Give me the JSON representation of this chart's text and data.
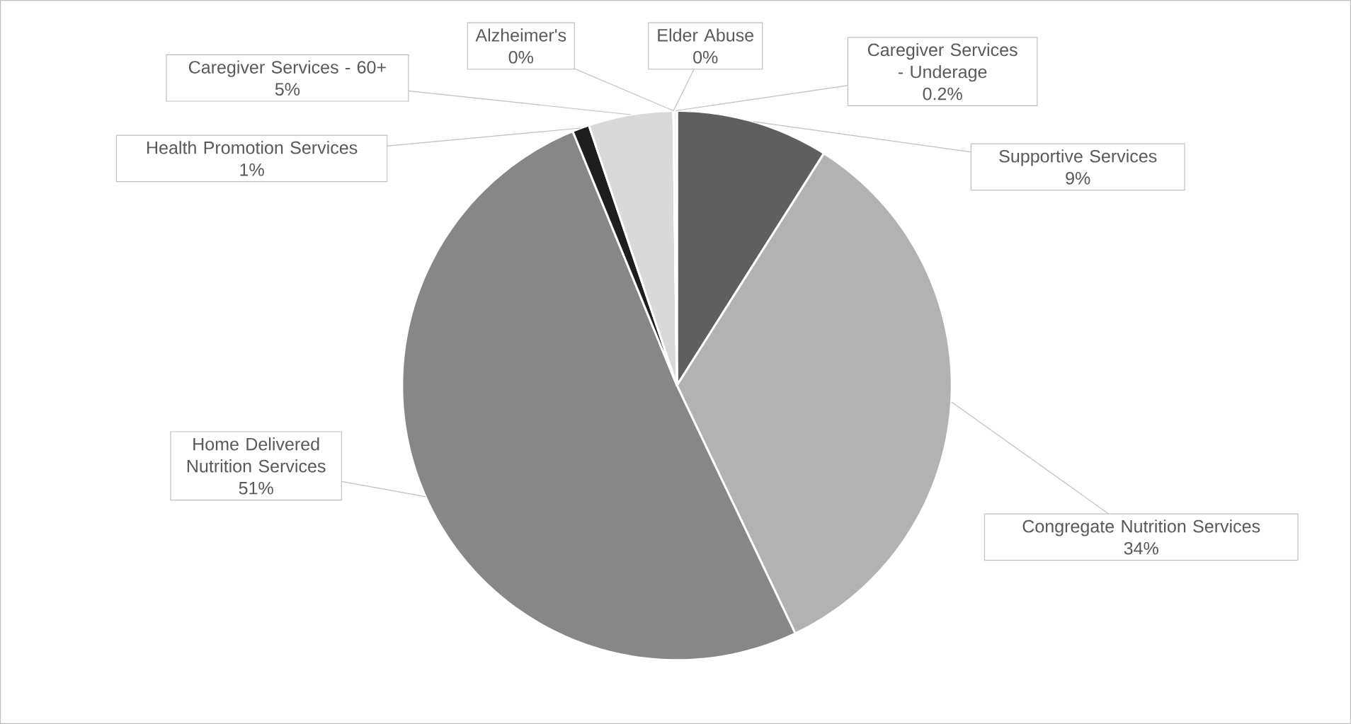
{
  "chart_data": {
    "type": "pie",
    "categories": [
      "Supportive Services",
      "Congregate Nutrition Services",
      "Home Delivered Nutrition Services",
      "Health Promotion Services",
      "Caregiver Services - 60+",
      "Alzheimer's",
      "Elder Abuse",
      "Caregiver Services - Underage"
    ],
    "values": [
      9,
      34,
      51,
      1,
      5,
      0,
      0,
      0.2
    ],
    "value_labels": [
      "9%",
      "34%",
      "51%",
      "1%",
      "5%",
      "0%",
      "0%",
      "0.2%"
    ],
    "colors": [
      "#5f5f5f",
      "#b2b2b2",
      "#878787",
      "#1e1e1e",
      "#d9d9d9",
      "#c8c8c8",
      "#e6e6e6",
      "#f2f2f2"
    ]
  }
}
